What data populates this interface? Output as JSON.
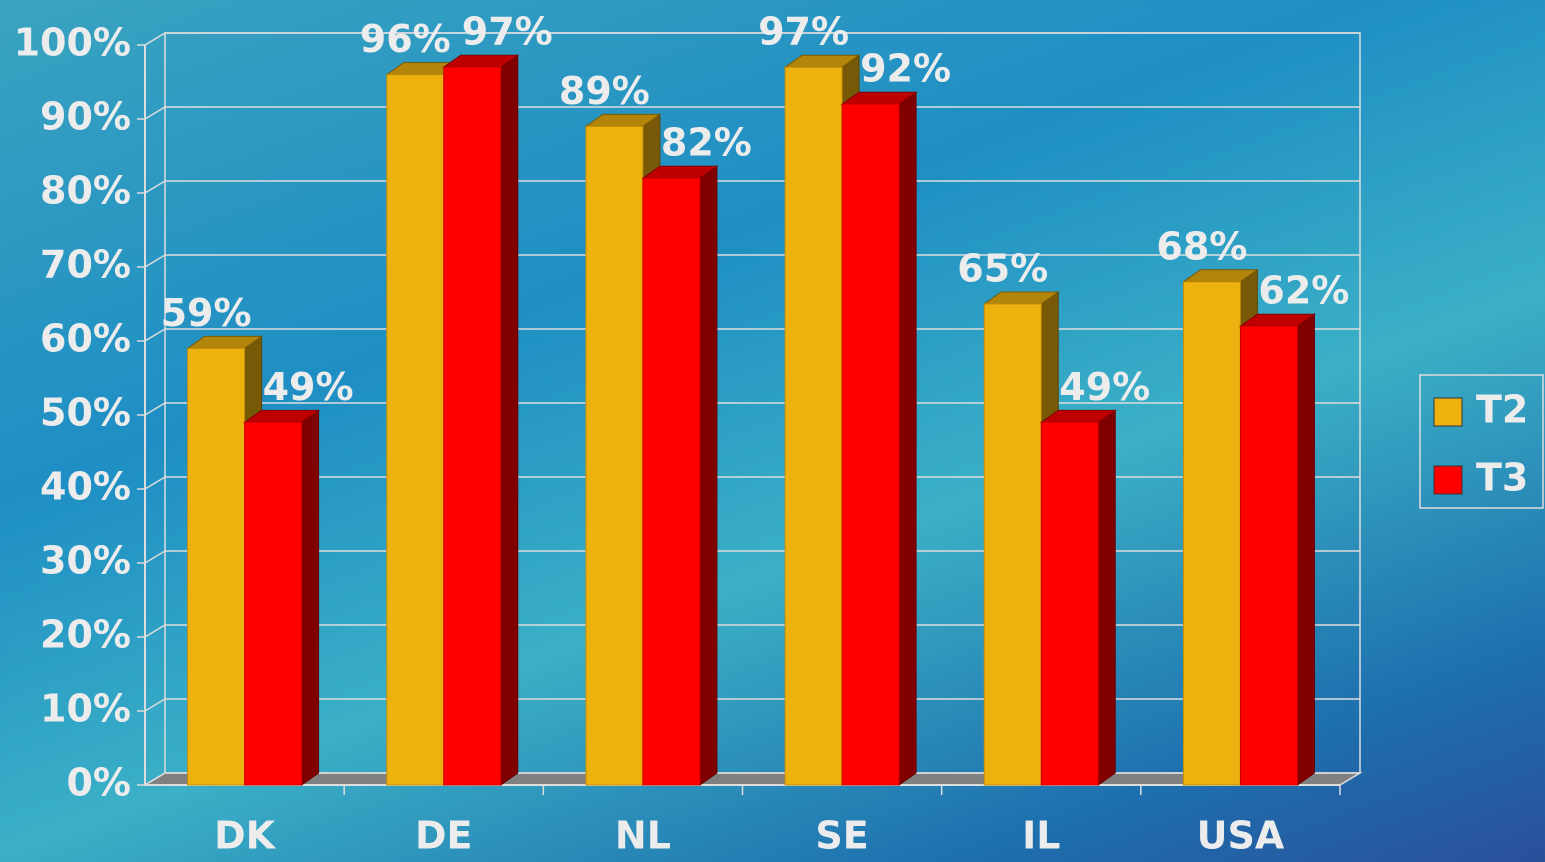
{
  "chart_data": {
    "type": "bar3d",
    "categories": [
      "DK",
      "DE",
      "NL",
      "SE",
      "IL",
      "USA"
    ],
    "series": [
      {
        "name": "T2",
        "color": "#eeb20e",
        "values": [
          59,
          96,
          89,
          97,
          65,
          68
        ],
        "value_labels": [
          "59%",
          "96%",
          "89%",
          "97%",
          "65%",
          "68%"
        ]
      },
      {
        "name": "T3",
        "color": "#ff0000",
        "values": [
          49,
          97,
          82,
          92,
          49,
          62
        ],
        "value_labels": [
          "49%",
          "97%",
          "82%",
          "92%",
          "49%",
          "62%"
        ]
      }
    ],
    "ylim": [
      0,
      100
    ],
    "yticks": [
      {
        "value": 0,
        "label": "0%"
      },
      {
        "value": 10,
        "label": "10%"
      },
      {
        "value": 20,
        "label": "20%"
      },
      {
        "value": 30,
        "label": "30%"
      },
      {
        "value": 40,
        "label": "40%"
      },
      {
        "value": 50,
        "label": "50%"
      },
      {
        "value": 60,
        "label": "60%"
      },
      {
        "value": 70,
        "label": "70%"
      },
      {
        "value": 80,
        "label": "80%"
      },
      {
        "value": 90,
        "label": "90%"
      },
      {
        "value": 100,
        "label": "100%"
      }
    ],
    "grid": true,
    "legend": "right"
  }
}
